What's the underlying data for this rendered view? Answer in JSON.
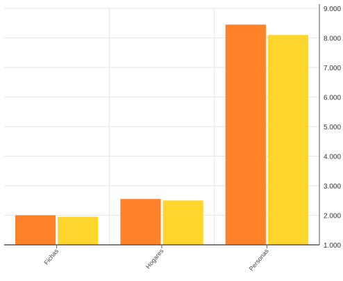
{
  "chart_data": {
    "type": "bar",
    "categories": [
      "Fichas",
      "Hogares",
      "Personas"
    ],
    "series": [
      {
        "values": [
          2000,
          2550,
          8450
        ]
      },
      {
        "values": [
          1950,
          2500,
          8100
        ]
      }
    ],
    "title": "",
    "xlabel": "",
    "ylabel": "",
    "ylim": [
      1000,
      9000
    ],
    "yticks": [
      "1.000",
      "2.000",
      "3.000",
      "4.000",
      "5.000",
      "6.000",
      "7.000",
      "8.000",
      "9.000"
    ],
    "y_axis_side": "right",
    "grid": true,
    "colors": [
      "#ff8128",
      "#fdd52d"
    ],
    "grid_color": "#e6e6e6",
    "axis_color": "#555555"
  }
}
